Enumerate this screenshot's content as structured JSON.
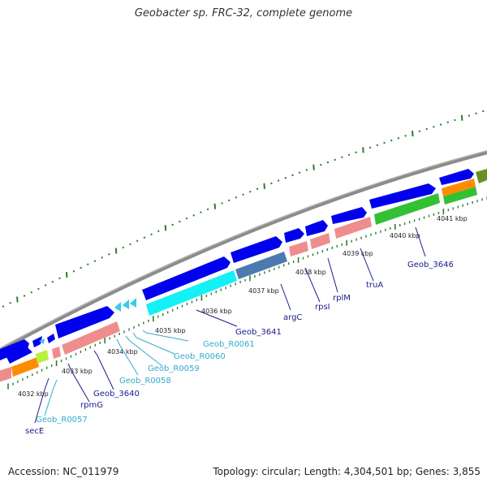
{
  "header": {
    "title": "Geobacter sp. FRC-32, complete genome"
  },
  "footer": {
    "accession": "Accession: NC_011979",
    "summary": "Topology: circular; Length: 4,304,501 bp; Genes: 3,855"
  },
  "colors": {
    "backbone": "#8c8c8c",
    "cds": "#0000ee",
    "rRNA_pink": "#ef8d8d",
    "tRNA_cyan": "#33ccee",
    "highlight_cyan": "#14f0f5",
    "steel": "#4a7ab0",
    "green": "#33c033",
    "orange": "#ff8c00",
    "lime": "#b8f03c",
    "olive": "#6b8e23",
    "label_dark": "#1a1a8c",
    "label_light": "#33aacc",
    "tick_green": "#2e7d32"
  },
  "scale": {
    "unit": "kbp",
    "ticks": [
      "4032 kbp",
      "4033 kbp",
      "4034 kbp",
      "4035 kbp",
      "4036 kbp",
      "4037 kbp",
      "4038 kbp",
      "4039 kbp",
      "4040 kbp",
      "4041 kbp"
    ]
  },
  "gene_labels": [
    {
      "name": "secE",
      "color": "dark"
    },
    {
      "name": "Geob_R0057",
      "color": "light"
    },
    {
      "name": "rpmG",
      "color": "dark"
    },
    {
      "name": "Geob_3640",
      "color": "dark"
    },
    {
      "name": "Geob_R0058",
      "color": "light"
    },
    {
      "name": "Geob_R0059",
      "color": "light"
    },
    {
      "name": "Geob_R0060",
      "color": "light"
    },
    {
      "name": "Geob_R0061",
      "color": "light"
    },
    {
      "name": "Geob_3641",
      "color": "dark"
    },
    {
      "name": "argC",
      "color": "dark"
    },
    {
      "name": "rpsI",
      "color": "dark"
    },
    {
      "name": "rplM",
      "color": "dark"
    },
    {
      "name": "truA",
      "color": "dark"
    },
    {
      "name": "Geob_3646",
      "color": "dark"
    }
  ]
}
